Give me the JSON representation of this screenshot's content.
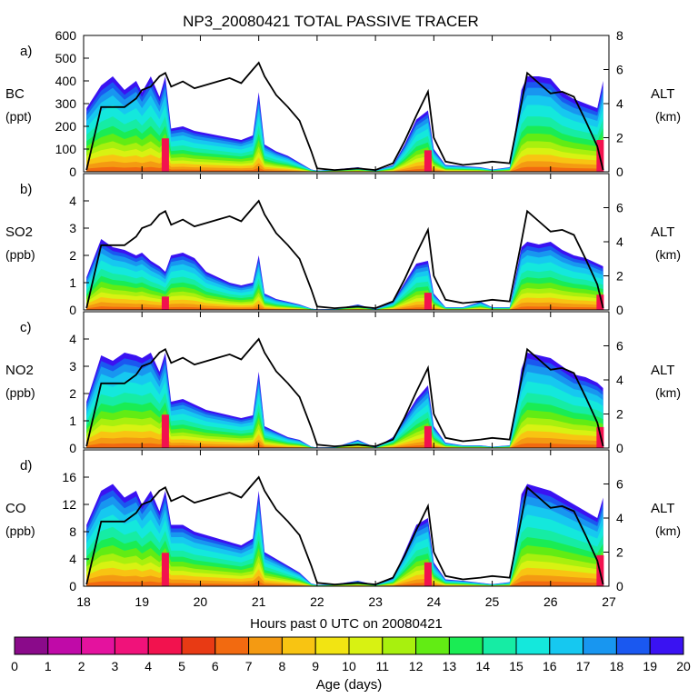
{
  "chart_data": {
    "type": "area",
    "title": "NP3_20080421 TOTAL PASSIVE TRACER",
    "xlabel": "Hours past 0 UTC on 20080421",
    "xlim": [
      18,
      27
    ],
    "x_ticks": [
      "18",
      "19",
      "20",
      "21",
      "22",
      "23",
      "24",
      "25",
      "26",
      "27"
    ],
    "panels": [
      {
        "label": "a)",
        "species": "BC",
        "unit": "(ppt)",
        "ylim": [
          0,
          600
        ],
        "y_ticks": [
          "0",
          "100",
          "200",
          "300",
          "400",
          "500",
          "600"
        ],
        "alt_ylim": [
          0,
          8
        ],
        "alt_ticks": [
          "0",
          "2",
          "4",
          "6",
          "8"
        ],
        "alt_label": "ALT",
        "alt_unit": "(km)",
        "x": [
          18.05,
          18.3,
          18.5,
          18.7,
          18.9,
          19.0,
          19.15,
          19.3,
          19.4,
          19.5,
          19.7,
          19.9,
          20.1,
          20.3,
          20.5,
          20.7,
          20.9,
          21.0,
          21.1,
          21.3,
          21.5,
          21.7,
          21.9,
          22.0,
          22.3,
          22.7,
          23.0,
          23.3,
          23.5,
          23.7,
          23.9,
          24.0,
          24.2,
          24.5,
          24.8,
          25.0,
          25.3,
          25.5,
          25.6,
          25.8,
          26.0,
          26.2,
          26.4,
          26.6,
          26.8,
          26.9
        ],
        "total": [
          280,
          380,
          420,
          360,
          400,
          350,
          420,
          330,
          420,
          190,
          200,
          180,
          170,
          160,
          150,
          140,
          160,
          350,
          120,
          90,
          70,
          40,
          10,
          5,
          10,
          20,
          5,
          30,
          120,
          230,
          270,
          100,
          30,
          25,
          20,
          10,
          20,
          360,
          420,
          420,
          410,
          350,
          320,
          300,
          280,
          400
        ],
        "altitude": [
          0.1,
          3.8,
          3.8,
          3.8,
          4.3,
          4.8,
          5.0,
          5.6,
          5.8,
          5.0,
          5.3,
          4.9,
          5.1,
          5.3,
          5.5,
          5.2,
          6.0,
          6.4,
          5.6,
          4.5,
          3.8,
          3.0,
          1.2,
          0.2,
          0.1,
          0.2,
          0.1,
          0.5,
          1.8,
          3.3,
          4.7,
          2.0,
          0.6,
          0.4,
          0.5,
          0.6,
          0.5,
          4.0,
          5.8,
          5.2,
          4.6,
          4.7,
          4.4,
          3.0,
          1.5,
          0.1
        ]
      },
      {
        "label": "b)",
        "species": "SO2",
        "unit": "(ppb)",
        "ylim": [
          0,
          5
        ],
        "y_ticks": [
          "0",
          "1",
          "2",
          "3",
          "4"
        ],
        "alt_ylim": [
          0,
          8
        ],
        "alt_ticks": [
          "0",
          "2",
          "4",
          "6"
        ],
        "alt_label": "ALT",
        "alt_unit": "(km)",
        "x": [
          18.05,
          18.3,
          18.5,
          18.7,
          18.9,
          19.0,
          19.15,
          19.3,
          19.4,
          19.5,
          19.7,
          19.9,
          20.1,
          20.3,
          20.5,
          20.7,
          20.9,
          21.0,
          21.1,
          21.3,
          21.5,
          21.7,
          21.9,
          22.0,
          22.3,
          22.7,
          23.0,
          23.3,
          23.5,
          23.7,
          23.9,
          24.0,
          24.2,
          24.5,
          24.8,
          25.0,
          25.3,
          25.5,
          25.6,
          25.8,
          26.0,
          26.2,
          26.4,
          26.6,
          26.8,
          26.9
        ],
        "total": [
          1.2,
          2.6,
          2.3,
          2.2,
          2.0,
          2.1,
          1.8,
          1.6,
          1.4,
          2.0,
          2.1,
          1.9,
          1.4,
          1.2,
          1.0,
          0.9,
          1.0,
          2.0,
          0.6,
          0.4,
          0.3,
          0.2,
          0.05,
          0.02,
          0.03,
          0.2,
          0.02,
          0.3,
          1.0,
          1.7,
          1.8,
          0.6,
          0.1,
          0.1,
          0.3,
          0.1,
          0.1,
          2.3,
          2.5,
          2.4,
          2.5,
          2.2,
          2.0,
          1.9,
          1.7,
          1.6
        ],
        "altitude": [
          0.1,
          3.8,
          3.8,
          3.8,
          4.3,
          4.8,
          5.0,
          5.6,
          5.8,
          5.0,
          5.3,
          4.9,
          5.1,
          5.3,
          5.5,
          5.2,
          6.0,
          6.4,
          5.6,
          4.5,
          3.8,
          3.0,
          1.2,
          0.2,
          0.1,
          0.2,
          0.1,
          0.5,
          1.8,
          3.3,
          4.7,
          2.0,
          0.6,
          0.4,
          0.5,
          0.6,
          0.5,
          4.0,
          5.8,
          5.2,
          4.6,
          4.7,
          4.4,
          3.0,
          1.5,
          0.1
        ]
      },
      {
        "label": "c)",
        "species": "NO2",
        "unit": "(ppb)",
        "ylim": [
          0,
          5
        ],
        "y_ticks": [
          "0",
          "1",
          "2",
          "3",
          "4"
        ],
        "alt_ylim": [
          0,
          8
        ],
        "alt_ticks": [
          "0",
          "2",
          "4",
          "6"
        ],
        "alt_label": "ALT",
        "alt_unit": "(km)",
        "x": [
          18.05,
          18.3,
          18.5,
          18.7,
          18.9,
          19.0,
          19.15,
          19.3,
          19.4,
          19.5,
          19.7,
          19.9,
          20.1,
          20.3,
          20.5,
          20.7,
          20.9,
          21.0,
          21.1,
          21.3,
          21.5,
          21.7,
          21.9,
          22.0,
          22.3,
          22.7,
          23.0,
          23.3,
          23.5,
          23.7,
          23.9,
          24.0,
          24.2,
          24.5,
          24.8,
          25.0,
          25.3,
          25.5,
          25.6,
          25.8,
          26.0,
          26.2,
          26.4,
          26.6,
          26.8,
          26.9
        ],
        "total": [
          1.7,
          3.4,
          3.2,
          3.5,
          3.4,
          3.3,
          3.5,
          2.8,
          3.5,
          1.7,
          1.8,
          1.6,
          1.4,
          1.3,
          1.2,
          1.1,
          1.2,
          2.8,
          0.8,
          0.6,
          0.4,
          0.3,
          0.05,
          0.02,
          0.03,
          0.3,
          0.02,
          0.4,
          1.1,
          1.8,
          2.3,
          0.8,
          0.2,
          0.1,
          0.1,
          0.05,
          0.1,
          2.9,
          3.5,
          3.4,
          3.3,
          3.0,
          2.7,
          2.6,
          2.4,
          2.2
        ],
        "altitude": [
          0.1,
          3.8,
          3.8,
          3.8,
          4.3,
          4.8,
          5.0,
          5.6,
          5.8,
          5.0,
          5.3,
          4.9,
          5.1,
          5.3,
          5.5,
          5.2,
          6.0,
          6.4,
          5.6,
          4.5,
          3.8,
          3.0,
          1.2,
          0.2,
          0.1,
          0.2,
          0.1,
          0.5,
          1.8,
          3.3,
          4.7,
          2.0,
          0.6,
          0.4,
          0.5,
          0.6,
          0.5,
          4.0,
          5.8,
          5.2,
          4.6,
          4.7,
          4.4,
          3.0,
          1.5,
          0.1
        ]
      },
      {
        "label": "d)",
        "species": "CO",
        "unit": "(ppb)",
        "ylim": [
          0,
          20
        ],
        "y_ticks": [
          "0",
          "4",
          "8",
          "12",
          "16"
        ],
        "alt_ylim": [
          0,
          8
        ],
        "alt_ticks": [
          "0",
          "2",
          "4",
          "6"
        ],
        "alt_label": "ALT",
        "alt_unit": "(km)",
        "x": [
          18.05,
          18.3,
          18.5,
          18.7,
          18.9,
          19.0,
          19.15,
          19.3,
          19.4,
          19.5,
          19.7,
          19.9,
          20.1,
          20.3,
          20.5,
          20.7,
          20.9,
          21.0,
          21.1,
          21.3,
          21.5,
          21.7,
          21.9,
          22.0,
          22.3,
          22.7,
          23.0,
          23.3,
          23.5,
          23.7,
          23.9,
          24.0,
          24.2,
          24.5,
          24.8,
          25.0,
          25.3,
          25.5,
          25.6,
          25.8,
          26.0,
          26.2,
          26.4,
          26.6,
          26.8,
          26.9
        ],
        "total": [
          9,
          14,
          15,
          13,
          14,
          12,
          14,
          11,
          14,
          9,
          9,
          8,
          7.5,
          7,
          6.5,
          6,
          7,
          14,
          5,
          4,
          3,
          2,
          0.4,
          0.2,
          0.3,
          0.8,
          0.2,
          1.2,
          5,
          9,
          10,
          3.5,
          1,
          0.8,
          0.5,
          0.3,
          0.6,
          13.5,
          15,
          14.5,
          14,
          13,
          12,
          11,
          10,
          13
        ],
        "altitude": [
          0.1,
          3.8,
          3.8,
          3.8,
          4.3,
          4.8,
          5.0,
          5.6,
          5.8,
          5.0,
          5.3,
          4.9,
          5.1,
          5.3,
          5.5,
          5.2,
          6.0,
          6.4,
          5.6,
          4.5,
          3.8,
          3.0,
          1.2,
          0.2,
          0.1,
          0.2,
          0.1,
          0.5,
          1.8,
          3.3,
          4.7,
          2.0,
          0.6,
          0.4,
          0.5,
          0.6,
          0.5,
          4.0,
          5.8,
          5.2,
          4.6,
          4.7,
          4.4,
          3.0,
          1.5,
          0.1
        ]
      }
    ],
    "colorbar": {
      "label": "Age (days)",
      "ticks": [
        "0",
        "1",
        "2",
        "3",
        "4",
        "5",
        "6",
        "7",
        "8",
        "9",
        "10",
        "11",
        "12",
        "13",
        "14",
        "15",
        "16",
        "17",
        "18",
        "19",
        "20"
      ],
      "colors": [
        "#8a0a8a",
        "#c00aa8",
        "#e4129e",
        "#f0127a",
        "#f2124e",
        "#e83a14",
        "#f26a10",
        "#f49a12",
        "#f8c412",
        "#f2e412",
        "#d8f212",
        "#a8f00e",
        "#62ec14",
        "#1aec54",
        "#16eca4",
        "#14e8dc",
        "#16c8f0",
        "#1896f0",
        "#1a58f0",
        "#3a12f2"
      ]
    }
  }
}
